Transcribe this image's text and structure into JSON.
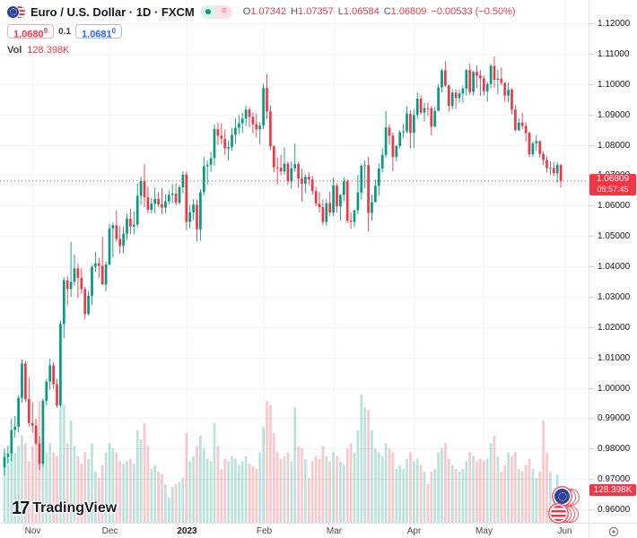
{
  "header": {
    "symbol_title": "Euro / U.S. Dollar · 1D · FXCM",
    "status_equals_glyph": "=",
    "ohlc": {
      "o_label": "O",
      "o": "1.07342",
      "h_label": "H",
      "h": "1.07357",
      "l_label": "L",
      "l": "1.06584",
      "c_label": "C",
      "c": "1.06809",
      "change": "−0.00533 (−0.50%)"
    },
    "sell_price": "1.0680",
    "sell_sup": "9",
    "spread": "0.1",
    "buy_price": "1.0681",
    "buy_sup": "0",
    "vol_label": "Vol",
    "vol_value": "128.398K"
  },
  "price_line": {
    "value": 1.06809,
    "label": "1.06809",
    "countdown": "08:57:45"
  },
  "volume_badge": "128.398K",
  "logo": {
    "text": "TradingView",
    "mark": "17"
  },
  "colors": {
    "up": "#089981",
    "down": "#f23645",
    "vol_up": "rgba(8,153,129,0.28)",
    "vol_down": "rgba(242,54,69,0.28)",
    "grid": "#f0f3fa",
    "axis_text": "#131722",
    "accent_blue": "#2962ff"
  },
  "chart_data": {
    "type": "candlestick+volume",
    "title": "Euro / U.S. Dollar",
    "timeframe": "1D",
    "exchange": "FXCM",
    "price_axis": {
      "max": 1.12,
      "min": 0.96,
      "step": 0.01,
      "decimals": 5,
      "grid": true
    },
    "time_axis_months": [
      {
        "label": "Nov",
        "i": 8
      },
      {
        "label": "Dec",
        "i": 30
      },
      {
        "label": "2023",
        "i": 52,
        "bold": true
      },
      {
        "label": "Feb",
        "i": 74
      },
      {
        "label": "Mar",
        "i": 94
      },
      {
        "label": "Apr",
        "i": 117
      },
      {
        "label": "May",
        "i": 137
      },
      {
        "label": "Jun",
        "i": 160
      }
    ],
    "bars_format": [
      "open",
      "high",
      "low",
      "close",
      "relative_volume"
    ],
    "bars": [
      [
        0.9738,
        0.98,
        0.9712,
        0.9772,
        0.55
      ],
      [
        0.9772,
        0.9809,
        0.9752,
        0.9784,
        0.5
      ],
      [
        0.9784,
        0.9899,
        0.9758,
        0.9861,
        0.62
      ],
      [
        0.9861,
        0.9907,
        0.9836,
        0.9872,
        0.55
      ],
      [
        0.9872,
        0.9976,
        0.9853,
        0.9967,
        0.6
      ],
      [
        0.9967,
        1.0093,
        0.9951,
        1.008,
        0.68
      ],
      [
        1.008,
        1.0088,
        0.9953,
        0.9963,
        0.62
      ],
      [
        0.9963,
        1.0034,
        0.9872,
        0.9884,
        0.48
      ],
      [
        0.9884,
        0.9953,
        0.9852,
        0.9876,
        0.6
      ],
      [
        0.9876,
        0.9899,
        0.9812,
        0.9817,
        0.72
      ],
      [
        0.9817,
        0.984,
        0.973,
        0.975,
        0.95
      ],
      [
        0.975,
        0.9966,
        0.9741,
        0.9957,
        0.85
      ],
      [
        0.9957,
        1.003,
        0.9942,
        1.002,
        0.55
      ],
      [
        1.002,
        1.0096,
        0.9994,
        1.0074,
        0.62
      ],
      [
        1.0074,
        1.0084,
        0.9998,
        1.0012,
        0.55
      ],
      [
        1.0012,
        1.003,
        0.9935,
        0.9942,
        0.52
      ],
      [
        0.9942,
        1.0222,
        0.9936,
        1.021,
        0.9
      ],
      [
        1.021,
        1.0364,
        1.0163,
        1.0354,
        0.92
      ],
      [
        1.0354,
        1.0368,
        1.0271,
        1.0325,
        0.62
      ],
      [
        1.0325,
        1.0481,
        1.0299,
        1.0349,
        0.8
      ],
      [
        1.0349,
        1.0439,
        1.0336,
        1.0393,
        0.6
      ],
      [
        1.0393,
        1.041,
        1.0295,
        1.0362,
        0.52
      ],
      [
        1.0362,
        1.0394,
        1.031,
        1.0325,
        0.46
      ],
      [
        1.0325,
        1.0333,
        1.0226,
        1.0243,
        0.55
      ],
      [
        1.0243,
        1.0319,
        1.0239,
        1.0303,
        0.5
      ],
      [
        1.0303,
        1.0405,
        1.0272,
        1.0398,
        0.62
      ],
      [
        1.0398,
        1.0448,
        1.0382,
        1.041,
        0.4
      ],
      [
        1.041,
        1.0428,
        1.0362,
        1.0402,
        0.35
      ],
      [
        1.0402,
        1.0497,
        1.034,
        1.034,
        0.45
      ],
      [
        1.034,
        1.0416,
        1.0318,
        1.0406,
        0.55
      ],
      [
        1.0406,
        1.0539,
        1.0402,
        1.0525,
        0.62
      ],
      [
        1.0525,
        1.0545,
        1.0428,
        1.0535,
        0.58
      ],
      [
        1.0535,
        1.0585,
        1.048,
        1.049,
        0.55
      ],
      [
        1.049,
        1.0533,
        1.0442,
        1.0467,
        0.48
      ],
      [
        1.0467,
        1.0531,
        1.0443,
        1.0507,
        0.46
      ],
      [
        1.0507,
        1.0573,
        1.0488,
        1.0557,
        0.48
      ],
      [
        1.0557,
        1.0589,
        1.0506,
        1.0531,
        0.5
      ],
      [
        1.0531,
        1.058,
        1.0505,
        1.0537,
        0.46
      ],
      [
        1.0537,
        1.0673,
        1.0528,
        1.0632,
        0.72
      ],
      [
        1.0632,
        1.0695,
        1.0602,
        1.0681,
        0.65
      ],
      [
        1.0681,
        1.0736,
        1.0594,
        1.0627,
        0.78
      ],
      [
        1.0627,
        1.0662,
        1.0574,
        1.0586,
        0.6
      ],
      [
        1.0586,
        1.0625,
        1.0574,
        1.0606,
        0.42
      ],
      [
        1.0606,
        1.066,
        1.0575,
        1.0622,
        0.45
      ],
      [
        1.0622,
        1.0645,
        1.0595,
        1.0604,
        0.4
      ],
      [
        1.0604,
        1.0657,
        1.0572,
        1.0593,
        0.38
      ],
      [
        1.0593,
        1.0636,
        1.0575,
        1.0614,
        0.3
      ],
      [
        1.0614,
        1.065,
        1.0604,
        1.0635,
        0.2
      ],
      [
        1.0635,
        1.0672,
        1.0609,
        1.0639,
        0.28
      ],
      [
        1.0639,
        1.0674,
        1.06,
        1.0609,
        0.3
      ],
      [
        1.0609,
        1.0669,
        1.0603,
        1.066,
        0.32
      ],
      [
        1.066,
        1.0713,
        1.064,
        1.0702,
        0.35
      ],
      [
        1.0702,
        1.0712,
        1.0519,
        1.0546,
        0.7
      ],
      [
        1.0546,
        1.0602,
        1.0524,
        1.0578,
        0.48
      ],
      [
        1.0578,
        1.0621,
        1.0552,
        1.0603,
        0.52
      ],
      [
        1.0603,
        1.0619,
        1.0482,
        1.0522,
        0.6
      ],
      [
        1.0522,
        1.0654,
        1.0484,
        1.0644,
        0.68
      ],
      [
        1.0644,
        1.076,
        1.0634,
        1.0729,
        0.58
      ],
      [
        1.0729,
        1.0748,
        1.0669,
        1.0734,
        0.5
      ],
      [
        1.0734,
        1.0777,
        1.0711,
        1.0756,
        0.48
      ],
      [
        1.0756,
        1.0868,
        1.0731,
        1.0852,
        0.78
      ],
      [
        1.0852,
        1.0874,
        1.0799,
        1.083,
        0.6
      ],
      [
        1.083,
        1.0871,
        1.0802,
        1.082,
        0.42
      ],
      [
        1.082,
        1.085,
        1.0766,
        1.0788,
        0.5
      ],
      [
        1.0788,
        1.0814,
        1.075,
        1.0793,
        0.48
      ],
      [
        1.0793,
        1.0856,
        1.0781,
        1.0833,
        0.52
      ],
      [
        1.0833,
        1.0887,
        1.0803,
        1.0856,
        0.5
      ],
      [
        1.0856,
        1.0898,
        1.0835,
        1.0871,
        0.45
      ],
      [
        1.0871,
        1.0906,
        1.0839,
        1.0886,
        0.48
      ],
      [
        1.0886,
        1.0929,
        1.0861,
        1.0916,
        0.52
      ],
      [
        1.0916,
        1.0924,
        1.0858,
        1.0892,
        0.46
      ],
      [
        1.0892,
        1.0907,
        1.0837,
        1.0868,
        0.44
      ],
      [
        1.0868,
        1.0903,
        1.0825,
        1.0851,
        0.42
      ],
      [
        1.0851,
        1.0875,
        1.0802,
        1.0863,
        0.55
      ],
      [
        1.0863,
        1.1001,
        1.0852,
        1.0987,
        0.75
      ],
      [
        1.0987,
        1.1033,
        1.0885,
        1.091,
        0.95
      ],
      [
        1.091,
        1.0929,
        1.0782,
        1.0795,
        0.92
      ],
      [
        1.0795,
        1.0798,
        1.0709,
        1.0726,
        0.7
      ],
      [
        1.0726,
        1.0758,
        1.0669,
        1.0725,
        0.55
      ],
      [
        1.0725,
        1.0767,
        1.07,
        1.0713,
        0.5
      ],
      [
        1.0713,
        1.0791,
        1.0702,
        1.0738,
        0.52
      ],
      [
        1.0738,
        1.0745,
        1.0668,
        1.0679,
        0.55
      ],
      [
        1.0679,
        1.0745,
        1.0656,
        1.0723,
        0.48
      ],
      [
        1.0723,
        1.0805,
        1.0711,
        1.0736,
        0.9
      ],
      [
        1.0736,
        1.0744,
        1.0659,
        1.0689,
        0.6
      ],
      [
        1.0689,
        1.0721,
        1.0613,
        1.0672,
        0.58
      ],
      [
        1.0672,
        1.0703,
        1.0641,
        1.0695,
        0.5
      ],
      [
        1.0695,
        1.071,
        1.0667,
        1.0686,
        0.35
      ],
      [
        1.0686,
        1.0698,
        1.0636,
        1.0648,
        0.48
      ],
      [
        1.0648,
        1.0663,
        1.0598,
        1.0606,
        0.52
      ],
      [
        1.0606,
        1.0645,
        1.0577,
        1.0595,
        0.5
      ],
      [
        1.0595,
        1.062,
        1.0536,
        1.0546,
        0.6
      ],
      [
        1.0546,
        1.0621,
        1.0533,
        1.0608,
        0.52
      ],
      [
        1.0608,
        1.0645,
        1.0565,
        1.0577,
        0.48
      ],
      [
        1.0577,
        1.0691,
        1.0565,
        1.0666,
        0.55
      ],
      [
        1.0666,
        1.0673,
        1.0577,
        1.0597,
        0.52
      ],
      [
        1.0597,
        1.0638,
        1.0551,
        1.0635,
        0.48
      ],
      [
        1.0635,
        1.0694,
        1.0614,
        1.068,
        0.45
      ],
      [
        1.068,
        1.0687,
        1.0542,
        1.055,
        0.58
      ],
      [
        1.055,
        1.0578,
        1.0524,
        1.0546,
        0.62
      ],
      [
        1.0546,
        1.0587,
        1.0528,
        1.0584,
        0.55
      ],
      [
        1.0584,
        1.0701,
        1.0571,
        1.0643,
        0.72
      ],
      [
        1.0643,
        1.0737,
        1.062,
        1.0731,
        1.0
      ],
      [
        1.0731,
        1.0749,
        1.0656,
        1.0733,
        0.9
      ],
      [
        1.0733,
        1.076,
        1.0516,
        1.0576,
        0.88
      ],
      [
        1.0576,
        1.0636,
        1.055,
        1.0611,
        0.72
      ],
      [
        1.0611,
        1.0686,
        1.0611,
        1.0665,
        0.58
      ],
      [
        1.0665,
        1.0738,
        1.0632,
        1.0722,
        0.55
      ],
      [
        1.0722,
        1.0789,
        1.0709,
        1.0767,
        0.52
      ],
      [
        1.0767,
        1.0912,
        1.0758,
        1.0857,
        0.62
      ],
      [
        1.0857,
        1.0868,
        1.0801,
        1.083,
        0.58
      ],
      [
        1.083,
        1.084,
        1.0713,
        1.076,
        0.55
      ],
      [
        1.076,
        1.08,
        1.0745,
        1.0796,
        0.42
      ],
      [
        1.0796,
        1.0848,
        1.0788,
        1.0841,
        0.45
      ],
      [
        1.0841,
        1.0868,
        1.0823,
        1.0844,
        0.42
      ],
      [
        1.0844,
        1.0926,
        1.0838,
        1.0902,
        0.5
      ],
      [
        1.0902,
        1.0913,
        1.0788,
        1.0839,
        0.55
      ],
      [
        1.0839,
        1.0916,
        1.0789,
        1.0898,
        0.48
      ],
      [
        1.0898,
        1.0973,
        1.0885,
        1.0952,
        0.5
      ],
      [
        1.0952,
        1.0963,
        1.0898,
        1.0906,
        0.45
      ],
      [
        1.0906,
        1.0938,
        1.0878,
        1.0921,
        0.4
      ],
      [
        1.0921,
        1.0939,
        1.0896,
        1.092,
        0.3
      ],
      [
        1.092,
        1.0928,
        1.0831,
        1.086,
        0.4
      ],
      [
        1.086,
        1.0925,
        1.0858,
        1.0912,
        0.42
      ],
      [
        1.0912,
        1.1,
        1.0911,
        1.0989,
        0.55
      ],
      [
        1.0989,
        1.1051,
        1.0972,
        1.1045,
        0.58
      ],
      [
        1.1045,
        1.1076,
        1.0991,
        1.0995,
        0.62
      ],
      [
        1.0995,
        1.1,
        1.0909,
        1.0928,
        0.5
      ],
      [
        1.0928,
        1.0983,
        1.0917,
        1.0972,
        0.45
      ],
      [
        1.0972,
        1.0983,
        1.0919,
        1.0954,
        0.42
      ],
      [
        1.0954,
        1.0981,
        1.0938,
        1.0969,
        0.4
      ],
      [
        1.0969,
        1.0995,
        1.0938,
        1.0985,
        0.42
      ],
      [
        1.0985,
        1.105,
        1.0963,
        1.1046,
        0.48
      ],
      [
        1.1046,
        1.1067,
        1.0965,
        1.0974,
        0.55
      ],
      [
        1.0974,
        1.1044,
        1.0962,
        1.104,
        0.52
      ],
      [
        1.104,
        1.1062,
        1.0987,
        1.1028,
        0.48
      ],
      [
        1.1028,
        1.1046,
        1.0961,
        1.1019,
        0.5
      ],
      [
        1.1019,
        1.1028,
        1.0963,
        1.0976,
        0.48
      ],
      [
        1.0976,
        1.1007,
        1.0942,
        1.1,
        0.5
      ],
      [
        1.1,
        1.1067,
        1.0986,
        1.106,
        0.62
      ],
      [
        1.106,
        1.1091,
        1.0987,
        1.1014,
        0.68
      ],
      [
        1.1014,
        1.1047,
        1.0967,
        1.1018,
        0.52
      ],
      [
        1.1018,
        1.1055,
        1.0996,
        1.1004,
        0.4
      ],
      [
        1.1004,
        1.1007,
        1.0942,
        1.0962,
        0.45
      ],
      [
        1.0962,
        1.1006,
        1.094,
        1.0982,
        0.55
      ],
      [
        1.0982,
        1.0986,
        1.09,
        1.0916,
        0.52
      ],
      [
        1.0916,
        1.0931,
        1.0844,
        1.0849,
        0.55
      ],
      [
        1.0849,
        1.0887,
        1.0845,
        1.0873,
        0.42
      ],
      [
        1.0873,
        1.0905,
        1.0853,
        1.0862,
        0.4
      ],
      [
        1.0862,
        1.0875,
        1.0811,
        1.0839,
        0.45
      ],
      [
        1.0839,
        1.0843,
        1.076,
        1.0769,
        0.5
      ],
      [
        1.0769,
        1.0812,
        1.0761,
        1.0805,
        0.42
      ],
      [
        1.0805,
        1.0831,
        1.078,
        1.0812,
        0.35
      ],
      [
        1.0812,
        1.0814,
        1.0759,
        1.077,
        0.4
      ],
      [
        1.077,
        1.0779,
        1.0733,
        1.075,
        0.8
      ],
      [
        1.075,
        1.0762,
        1.0708,
        1.0723,
        0.55
      ],
      [
        1.0723,
        1.0746,
        1.0701,
        1.0724,
        0.4
      ],
      [
        1.0724,
        1.0744,
        1.0697,
        1.0706,
        0.22
      ],
      [
        1.0706,
        1.0743,
        1.0674,
        1.0734,
        0.38
      ],
      [
        1.07342,
        1.07357,
        1.06584,
        1.06809,
        0.25
      ]
    ]
  }
}
